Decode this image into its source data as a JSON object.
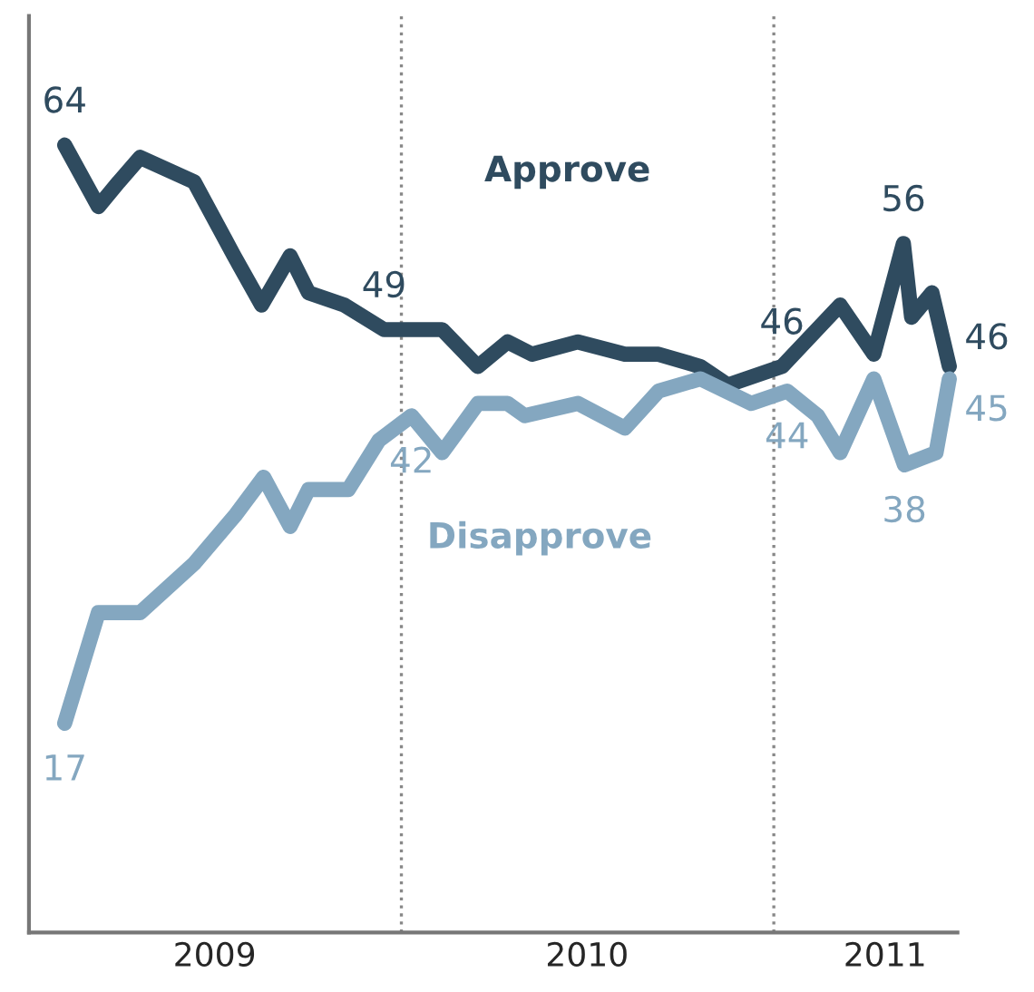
{
  "chart_data": {
    "type": "line",
    "tick_labels": "x",
    "legend": false,
    "grid": false,
    "marker": "none",
    "line_style": "solid",
    "xlim": [
      "2009-01-01",
      "2011-06-30"
    ],
    "ylim": [
      0,
      74.5
    ],
    "xticks": [
      {
        "value": "2009-07-02",
        "label": "2009"
      },
      {
        "value": "2010-07-02",
        "label": "2010"
      },
      {
        "value": "2011-04-20",
        "label": "2011"
      }
    ],
    "series": [
      {
        "name": "Approve",
        "color": "#2f4b5f",
        "x": [
          "2009-02-05",
          "2009-03-10",
          "2009-03-30",
          "2009-04-20",
          "2009-06-12",
          "2009-07-21",
          "2009-08-17",
          "2009-09-14",
          "2009-10-02",
          "2009-11-06",
          "2009-12-15",
          "2010-02-10",
          "2010-03-17",
          "2010-04-15",
          "2010-05-09",
          "2010-06-23",
          "2010-08-08",
          "2010-09-10",
          "2010-10-21",
          "2010-11-17",
          "2011-01-09",
          "2011-03-07",
          "2011-04-09",
          "2011-05-08",
          "2011-05-16",
          "2011-06-05",
          "2011-06-22"
        ],
        "values": [
          64,
          59,
          61,
          63,
          61,
          55,
          51,
          55,
          52,
          51,
          49,
          49,
          46,
          48,
          47,
          48,
          47,
          47,
          46,
          44.5,
          46,
          51,
          47,
          56,
          50,
          52,
          46
        ],
        "value_labels": [
          "64",
          null,
          null,
          null,
          null,
          null,
          null,
          null,
          null,
          null,
          "49",
          null,
          null,
          null,
          null,
          null,
          null,
          null,
          null,
          null,
          "46",
          null,
          null,
          "56",
          null,
          null,
          "46"
        ]
      },
      {
        "name": "Disapprove",
        "color": "#84a7c0",
        "x": [
          "2009-02-05",
          "2009-03-10",
          "2009-04-20",
          "2009-06-12",
          "2009-07-23",
          "2009-08-19",
          "2009-09-14",
          "2009-10-02",
          "2009-11-10",
          "2009-12-10",
          "2010-01-11",
          "2010-02-10",
          "2010-03-17",
          "2010-04-15",
          "2010-05-02",
          "2010-06-23",
          "2010-08-08",
          "2010-09-10",
          "2010-10-21",
          "2010-12-10",
          "2011-01-14",
          "2011-02-13",
          "2011-03-07",
          "2011-04-09",
          "2011-05-09",
          "2011-06-09",
          "2011-06-22"
        ],
        "values": [
          17,
          26,
          26,
          30,
          34,
          37,
          33,
          36,
          36,
          40,
          42,
          39,
          43,
          43,
          42,
          43,
          41,
          44,
          45,
          43,
          44,
          42,
          39,
          45,
          38,
          39,
          45
        ],
        "value_labels": [
          "17",
          null,
          null,
          null,
          null,
          null,
          null,
          null,
          null,
          null,
          "42",
          null,
          null,
          null,
          null,
          null,
          null,
          null,
          null,
          null,
          "44",
          null,
          null,
          null,
          "38",
          null,
          "45"
        ]
      }
    ],
    "ref_lines": [
      {
        "axis": "x",
        "value": "2010-01-01",
        "color": "#888888",
        "line_style": "dotted"
      },
      {
        "axis": "x",
        "value": "2011-01-01",
        "color": "#888888",
        "line_style": "dotted"
      }
    ]
  }
}
